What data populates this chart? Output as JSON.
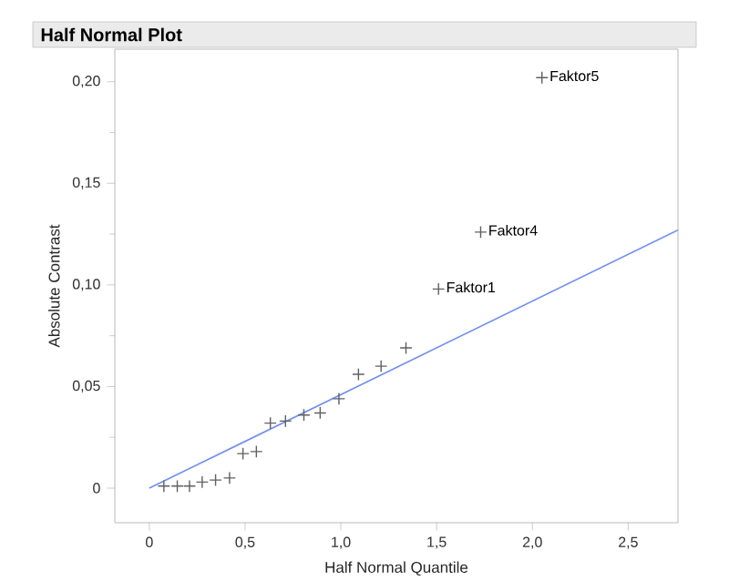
{
  "chart_data": {
    "type": "scatter",
    "title": "Half Normal Plot",
    "xlabel": "Half Normal Quantile",
    "ylabel": "Absolute Contrast",
    "xlim": [
      -0.18,
      2.76
    ],
    "ylim": [
      -0.017,
      0.216
    ],
    "xticks": [
      0,
      {
        "value": 0.5,
        "label": "0,5"
      },
      {
        "value": 1,
        "label": "1,0"
      },
      {
        "value": 1.5,
        "label": "1,5"
      },
      {
        "value": 2,
        "label": "2,0"
      },
      {
        "value": 2.5,
        "label": "2,5"
      }
    ],
    "yticks": [
      0,
      {
        "value": 0.05,
        "label": "0,05"
      },
      {
        "value": 0.1,
        "label": "0,10"
      },
      {
        "value": 0.15,
        "label": "0,15"
      },
      {
        "value": 0.2,
        "label": "0,20"
      }
    ],
    "series": [
      {
        "color": "#606060",
        "marker": "cross",
        "x": [
          0.076,
          0.146,
          0.21,
          0.276,
          0.346,
          0.419,
          0.489,
          0.559,
          0.632,
          0.711,
          0.807,
          0.892,
          0.99,
          1.092,
          1.21,
          1.34,
          1.51,
          1.73,
          2.05
        ],
        "values": [
          0.001,
          0.001,
          0.001,
          0.003,
          0.004,
          0.005,
          0.017,
          0.018,
          0.032,
          0.033,
          0.036,
          0.037,
          0.044,
          0.056,
          0.06,
          0.069,
          0.098,
          0.126,
          0.202
        ]
      },
      {
        "type": "line",
        "color": "#6f8ff0",
        "marker": "none",
        "line_style": "solid",
        "x": [
          0,
          2.76
        ],
        "values": [
          0,
          0.127
        ]
      }
    ],
    "annotations": [
      {
        "text": "Faktor1",
        "x": 1.51,
        "y": 0.098
      },
      {
        "text": "Faktor4",
        "x": 1.73,
        "y": 0.126
      },
      {
        "text": "Faktor5",
        "x": 2.05,
        "y": 0.202
      }
    ]
  }
}
